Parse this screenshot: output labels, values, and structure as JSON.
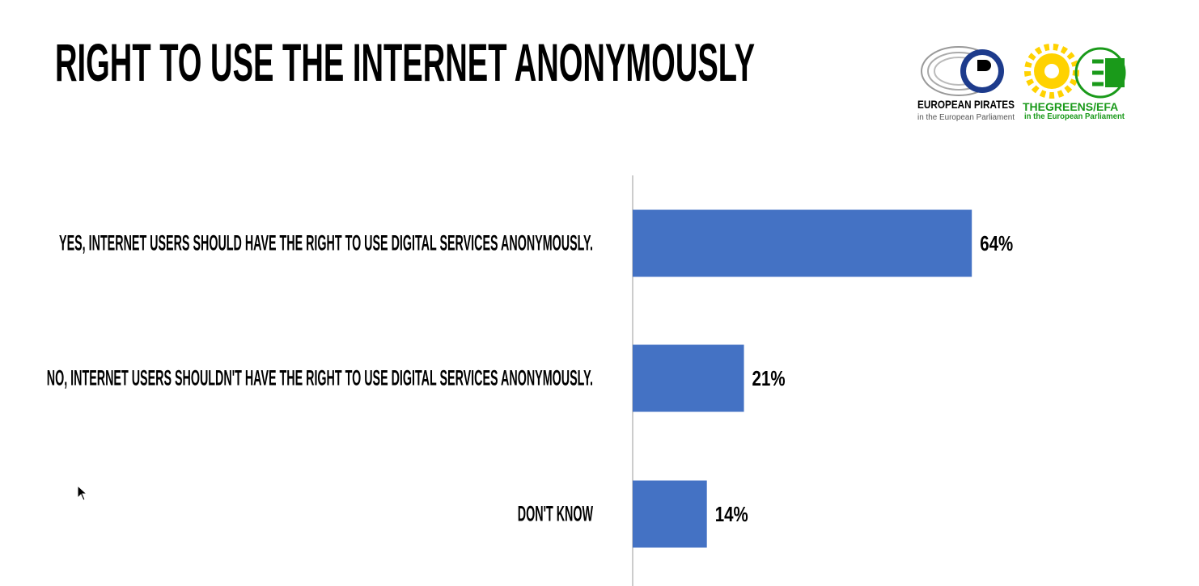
{
  "chart_data": {
    "type": "barh",
    "title": "RIGHT TO USE THE INTERNET ANONYMOUSLY",
    "categories": [
      "YES, INTERNET USERS SHOULD HAVE THE RIGHT TO USE DIGITAL SERVICES ANONYMOUSLY.",
      "NO, INTERNET USERS SHOULDN'T HAVE THE RIGHT TO USE DIGITAL SERVICES ANONYMOUSLY.",
      "DON'T KNOW"
    ],
    "values": [
      64,
      21,
      14
    ],
    "value_labels": [
      "64%",
      "21%",
      "14%"
    ],
    "color": "#4472c4",
    "xlim": [
      0,
      100
    ]
  },
  "logos": {
    "pirates": {
      "name": "EUROPEAN PIRATES",
      "sub": "in the European Parliament"
    },
    "greens": {
      "name_a": "THE",
      "name_b": "GREENS/EFA",
      "sub": "in the European Parliament"
    }
  }
}
